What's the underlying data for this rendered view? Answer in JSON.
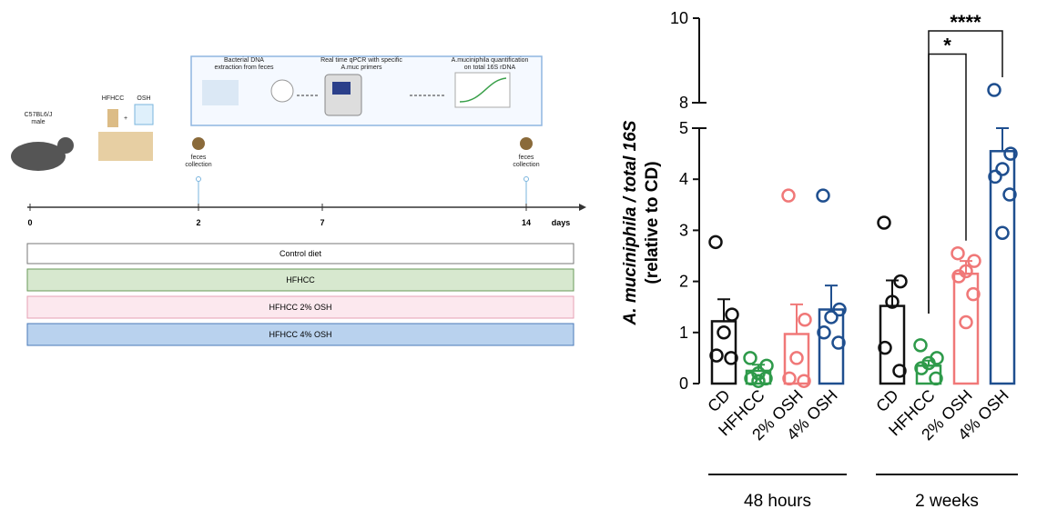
{
  "diagram": {
    "mouse": "C57BL6/J\nmale",
    "diet": "HFHCC",
    "plus": "+",
    "supplement": "OSH",
    "steps": [
      "Bacterial DNA\nextraction from feces",
      "Real time qPCR with specific\nA.muc primers",
      "A.muciniphila quantification\non total 16S rDNA"
    ],
    "collections": [
      "feces\ncollection",
      "feces\ncollection"
    ],
    "timeline": [
      "0",
      "2",
      "7",
      "14"
    ],
    "timeline_unit": "days",
    "groups": [
      "Control diet",
      "HFHCC",
      "HFHCC 2% OSH",
      "HFHCC 4% OSH"
    ]
  },
  "chart_data": {
    "type": "bar",
    "ylabel": "A. muciniphila / total 16S",
    "ylabel2": "(relative to CD)",
    "categories": [
      "CD",
      "HFHCC",
      "2% OSH",
      "4% OSH"
    ],
    "colors": [
      "#111111",
      "#2e9a4a",
      "#f07878",
      "#1f4f8f"
    ],
    "ylim": [
      0,
      5
    ],
    "yticks": [
      0,
      1,
      2,
      3,
      4,
      5
    ],
    "ylim_upper": [
      8,
      10
    ],
    "yticks_upper": [
      8,
      10
    ],
    "groups": [
      {
        "name": "48 hours",
        "values": [
          1.22,
          0.25,
          0.97,
          1.45
        ],
        "errors": [
          0.43,
          0.12,
          0.58,
          0.47
        ],
        "points": [
          [
            2.77,
            1.35,
            1.0,
            0.55,
            0.5
          ],
          [
            0.5,
            0.35,
            0.2,
            0.1,
            0.1,
            0.05
          ],
          [
            3.68,
            1.25,
            0.5,
            0.1,
            0.05
          ],
          [
            3.68,
            1.45,
            1.3,
            1.0,
            0.8
          ]
        ]
      },
      {
        "name": "2 weeks",
        "values": [
          1.52,
          0.35,
          2.15,
          4.55
        ],
        "errors": [
          0.5,
          0.1,
          0.25,
          0.45
        ],
        "points": [
          [
            3.15,
            2.0,
            1.6,
            0.7,
            0.25
          ],
          [
            0.75,
            0.5,
            0.4,
            0.3,
            0.1
          ],
          [
            2.55,
            2.4,
            2.2,
            2.1,
            1.75,
            1.2
          ],
          [
            8.3,
            4.5,
            4.2,
            4.05,
            3.7,
            2.95
          ]
        ]
      }
    ],
    "significance": [
      {
        "label": "*",
        "group": 1,
        "between": [
          1,
          2
        ],
        "y": 9.15
      },
      {
        "label": "****",
        "group": 1,
        "between": [
          1,
          3
        ],
        "y": 9.7
      }
    ]
  }
}
